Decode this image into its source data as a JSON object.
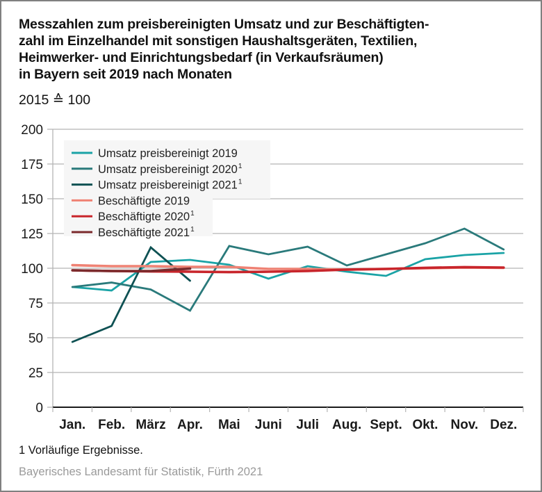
{
  "chart_data": {
    "type": "line",
    "title_lines": [
      "Messzahlen zum preisbereinigten Umsatz und zur Beschäftigten-",
      "zahl im Einzelhandel mit sonstigen Haushaltsgeräten, Textilien,",
      "Heimwerker- und Einrichtungsbedarf (in Verkaufsräumen)",
      "in Bayern seit 2019 nach Monaten"
    ],
    "subtitle": "2015 ≙ 100",
    "xlabel": "",
    "ylabel": "",
    "ylim": [
      0,
      200
    ],
    "yticks": [
      0,
      25,
      50,
      75,
      100,
      125,
      150,
      175,
      200
    ],
    "grid": true,
    "legend_position": "top-left",
    "categories": [
      "Jan.",
      "Feb.",
      "März",
      "Apr.",
      "Mai",
      "Juni",
      "Juli",
      "Aug.",
      "Sept.",
      "Okt.",
      "Nov.",
      "Dez."
    ],
    "series": [
      {
        "name": "Umsatz preisbereinigt 2019",
        "sup": "",
        "color": "#1aa3a6",
        "values": [
          86.5,
          84,
          104.5,
          106,
          102.5,
          92.5,
          101.5,
          97.5,
          94.5,
          106.5,
          109.5,
          111
        ]
      },
      {
        "name": "Umsatz preisbereinigt 2020",
        "sup": "1",
        "color": "#2a7a7b",
        "values": [
          86.5,
          89.7,
          84.7,
          69.5,
          116,
          110,
          115.5,
          102,
          110,
          118,
          128.5,
          113.5
        ]
      },
      {
        "name": "Umsatz preisbereinigt 2021",
        "sup": "1",
        "color": "#0e5153",
        "values": [
          47,
          58.5,
          115,
          91,
          null,
          null,
          null,
          null,
          null,
          null,
          null,
          null
        ]
      },
      {
        "name": "Beschäftigte 2019",
        "sup": "",
        "color": "#ef8274",
        "values": [
          102.2,
          101.5,
          101.5,
          101,
          101,
          99.5,
          99.5,
          99,
          99.5,
          100,
          100.5,
          100.3
        ]
      },
      {
        "name": "Beschäftigte 2020",
        "sup": "1",
        "color": "#c8252b",
        "values": [
          98.5,
          98,
          97.7,
          97.5,
          97.2,
          97.5,
          98,
          99,
          99.5,
          100.3,
          100.8,
          100.5
        ]
      },
      {
        "name": "Beschäftigte 2021",
        "sup": "1",
        "color": "#7b2a2c",
        "values": [
          98.5,
          98,
          98,
          99.7,
          null,
          null,
          null,
          null,
          null,
          null,
          null,
          null
        ]
      }
    ]
  },
  "footnote": "1  Vorläufige Ergebnisse.",
  "source": "Bayerisches Landesamt für Statistik, Fürth 2021"
}
